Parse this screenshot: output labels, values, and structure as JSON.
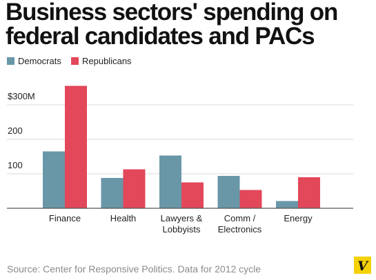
{
  "title_line1": "Business sectors' spending on",
  "title_line2": "federal candidates and PACs",
  "legend": [
    {
      "label": "Democrats",
      "color": "#6997a8"
    },
    {
      "label": "Republicans",
      "color": "#e3475a"
    }
  ],
  "source": "Source: Center for Responsive Politics. Data for 2012 cycle",
  "logo_letter": "V",
  "chart_data": {
    "type": "bar",
    "title": "Business sectors' spending on federal candidates and PACs",
    "categories": [
      [
        "Finance"
      ],
      [
        "Health"
      ],
      [
        "Lawyers &",
        "Lobbyists"
      ],
      [
        "Comm /",
        "Electronics"
      ],
      [
        "Energy"
      ]
    ],
    "series": [
      {
        "name": "Democrats",
        "color": "#6997a8",
        "values": [
          165,
          88,
          153,
          94,
          21
        ]
      },
      {
        "name": "Republicans",
        "color": "#e3475a",
        "values": [
          355,
          113,
          75,
          53,
          90
        ]
      }
    ],
    "yticks": [
      100,
      200,
      300
    ],
    "ytick_labels": [
      "100",
      "200",
      "$300M"
    ],
    "ylim": [
      0,
      360
    ],
    "grid": true
  }
}
